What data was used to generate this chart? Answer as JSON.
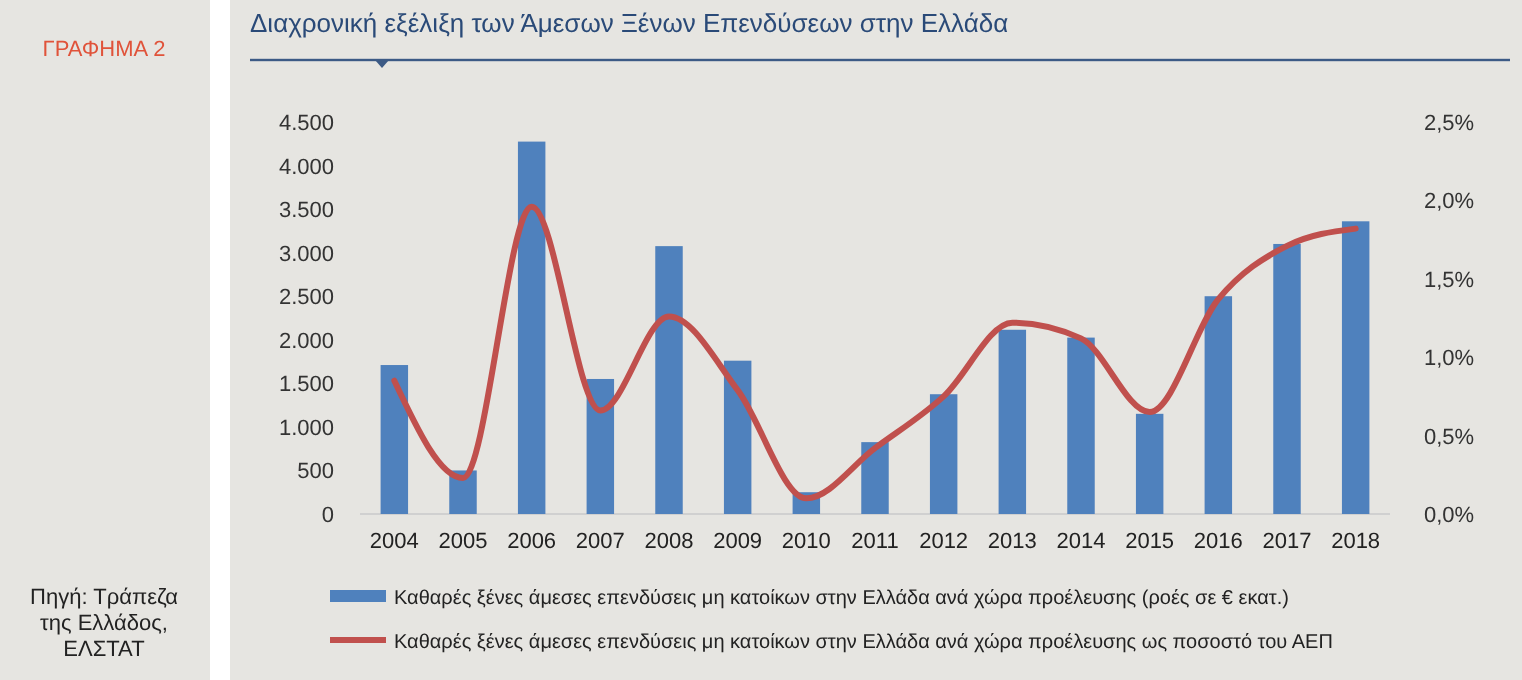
{
  "chart_data": {
    "type": "bar",
    "title": "Διαχρονική εξέλιξη των Άμεσων Ξένων Επενδύσεων στην Ελλάδα",
    "annotations": [
      "ΓΡΑΦΗΜΑ 2",
      "Πηγή: Τράπεζα της Ελλάδος, ΕΛΣΤΑΤ"
    ],
    "categories": [
      "2004",
      "2005",
      "2006",
      "2007",
      "2008",
      "2009",
      "2010",
      "2011",
      "2012",
      "2013",
      "2014",
      "2015",
      "2016",
      "2017",
      "2018"
    ],
    "series": [
      {
        "name": "Καθαρές ξένες άμεσες επενδύσεις μη κατοίκων στην Ελλάδα ανά χώρα προέλευσης (ροές σε € εκατ.)",
        "color": "#4f81bd",
        "values": [
          1710,
          500,
          4275,
          1550,
          3075,
          1760,
          250,
          825,
          1375,
          2115,
          2025,
          1150,
          2500,
          3100,
          3360
        ]
      },
      {
        "name": "Καθαρές ξένες άμεσες επενδύσεις μη κατοίκων στην Ελλάδα ανά χώρα προέλευσης ως ποσοστό του ΑΕΠ",
        "type": "line",
        "axis": "y2",
        "color": "#c0504d",
        "values": [
          0.85,
          0.23,
          1.96,
          0.66,
          1.26,
          0.79,
          0.1,
          0.42,
          0.75,
          1.22,
          1.12,
          0.65,
          1.37,
          1.71,
          1.82
        ]
      }
    ],
    "ylim": [
      0,
      4500
    ],
    "yticks": [
      0,
      500,
      {
        "value": 1000,
        "label": "1.000"
      },
      {
        "value": 1500,
        "label": "1.500"
      },
      {
        "value": 2000,
        "label": "2.000"
      },
      {
        "value": 2500,
        "label": "2.500"
      },
      {
        "value": 3000,
        "label": "3.000"
      },
      {
        "value": 3500,
        "label": "3.500"
      },
      {
        "value": 4000,
        "label": "4.000"
      },
      {
        "value": 4500,
        "label": "4.500"
      }
    ],
    "y2lim": [
      0,
      2.5
    ],
    "y2ticks": [
      {
        "value": 0,
        "label": "0,0%"
      },
      {
        "value": 0.5,
        "label": "0,5%"
      },
      {
        "value": 1,
        "label": "1,0%"
      },
      {
        "value": 1.5,
        "label": "1,5%"
      },
      {
        "value": 2,
        "label": "2,0%"
      },
      {
        "value": 2.5,
        "label": "2,5%"
      }
    ],
    "grid": false,
    "legend": "bottom"
  }
}
